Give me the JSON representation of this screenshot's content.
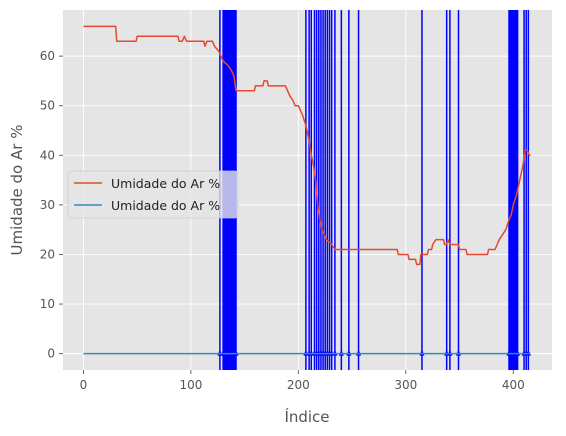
{
  "chart_data": {
    "type": "line",
    "xlabel": "Índice",
    "ylabel": "Umidade do Ar %",
    "xlim": [
      -19,
      436
    ],
    "ylim": [
      -3.3,
      69.3
    ],
    "x_ticks": [
      0,
      100,
      200,
      300,
      400
    ],
    "y_ticks": [
      0,
      10,
      20,
      30,
      40,
      50,
      60
    ],
    "grid": true,
    "legend_position": "center-left",
    "colors": {
      "background": "#E5E5E5",
      "grid": "#FFFFFF",
      "series_1": "#E24A33",
      "series_2": "#348ABD",
      "vlines": "#0000FF",
      "text": "#555555"
    },
    "series": [
      {
        "name": "Umidade do Ar %",
        "points": [
          [
            0,
            66
          ],
          [
            30,
            66
          ],
          [
            31,
            63
          ],
          [
            49,
            63
          ],
          [
            50,
            64
          ],
          [
            88,
            64
          ],
          [
            89,
            63
          ],
          [
            92,
            63
          ],
          [
            94,
            64
          ],
          [
            96,
            63
          ],
          [
            112,
            63
          ],
          [
            113,
            62
          ],
          [
            115,
            63
          ],
          [
            120,
            63
          ],
          [
            122,
            62
          ],
          [
            126,
            61
          ],
          [
            130,
            59
          ],
          [
            135,
            58
          ],
          [
            138,
            57
          ],
          [
            140,
            56
          ],
          [
            142,
            53
          ],
          [
            159,
            53
          ],
          [
            160,
            54
          ],
          [
            167,
            54
          ],
          [
            168,
            55
          ],
          [
            171,
            55
          ],
          [
            172,
            54
          ],
          [
            188,
            54
          ],
          [
            190,
            53
          ],
          [
            192,
            52
          ],
          [
            195,
            51
          ],
          [
            197,
            50
          ],
          [
            200,
            50
          ],
          [
            204,
            48
          ],
          [
            207,
            46
          ],
          [
            210,
            43
          ],
          [
            212,
            40
          ],
          [
            214,
            38
          ],
          [
            216,
            35
          ],
          [
            218,
            30
          ],
          [
            220,
            27
          ],
          [
            222,
            25
          ],
          [
            226,
            23
          ],
          [
            231,
            22
          ],
          [
            234,
            21
          ],
          [
            292,
            21
          ],
          [
            293,
            20
          ],
          [
            302,
            20
          ],
          [
            303,
            19
          ],
          [
            309,
            19
          ],
          [
            310,
            18
          ],
          [
            313,
            18
          ],
          [
            314,
            20
          ],
          [
            320,
            20
          ],
          [
            321,
            21
          ],
          [
            324,
            21
          ],
          [
            325,
            22
          ],
          [
            328,
            23
          ],
          [
            335,
            23
          ],
          [
            336,
            22
          ],
          [
            338,
            22
          ],
          [
            339,
            23
          ],
          [
            341,
            22
          ],
          [
            349,
            22
          ],
          [
            350,
            21
          ],
          [
            356,
            21
          ],
          [
            357,
            20
          ],
          [
            376,
            20
          ],
          [
            377,
            21
          ],
          [
            383,
            21
          ],
          [
            385,
            22
          ],
          [
            387,
            23
          ],
          [
            390,
            24
          ],
          [
            393,
            25
          ],
          [
            396,
            27
          ],
          [
            398,
            28
          ],
          [
            400,
            30
          ],
          [
            403,
            32
          ],
          [
            405,
            34
          ],
          [
            407,
            36
          ],
          [
            409,
            38
          ],
          [
            411,
            41
          ],
          [
            413,
            41
          ],
          [
            415,
            40
          ],
          [
            416,
            40
          ]
        ]
      },
      {
        "name": "Umidade do Ar %",
        "points": [
          [
            0,
            0
          ],
          [
            416,
            0
          ]
        ]
      }
    ],
    "vertical_lines_x": [
      127,
      130,
      131,
      132,
      133,
      134,
      135,
      136,
      137,
      138,
      139,
      140,
      141,
      142,
      207,
      210,
      212,
      215,
      217,
      219,
      221,
      223,
      225,
      227,
      229,
      231,
      234,
      240,
      247,
      256,
      315,
      338,
      341,
      349,
      396,
      397,
      398,
      399,
      400,
      401,
      402,
      403,
      404,
      410,
      412,
      414
    ]
  }
}
